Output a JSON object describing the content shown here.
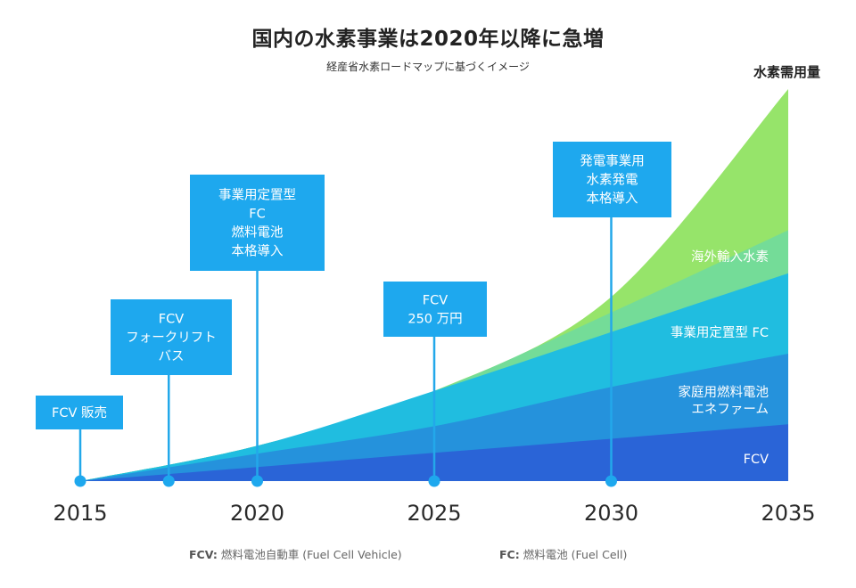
{
  "header": {
    "title": "国内の水素事業は2020年以降に急増",
    "subtitle": "経産省水素ロードマップに基づくイメージ"
  },
  "chart_data": {
    "type": "area",
    "stacked": true,
    "title": "国内の水素事業は2020年以降に急増",
    "subtitle": "経産省水素ロードマップに基づくイメージ",
    "ylabel": "水素需用量",
    "xlabel": "",
    "x": [
      2015,
      2020,
      2025,
      2030,
      2035
    ],
    "xlim": [
      2015,
      2035
    ],
    "ylim": [
      0,
      100
    ],
    "grid": false,
    "series": [
      {
        "name": "FCV",
        "color": "#2a64d7",
        "values": [
          0,
          3.6,
          7.2,
          10.8,
          14.5
        ]
      },
      {
        "name": "家庭用燃料電池 エネファーム",
        "color": "#2592dc",
        "values": [
          0,
          7,
          14,
          24,
          32.5
        ]
      },
      {
        "name": "事業用定置型 FC",
        "color": "#20bde0",
        "values": [
          0,
          9,
          23,
          38,
          53
        ]
      },
      {
        "name": "海外輸入水素",
        "color": "#74dc98",
        "values": [
          0,
          9,
          23,
          43,
          64
        ]
      },
      {
        "name": "発電事業用 水素発電",
        "color": "#96e46a",
        "values": [
          0,
          9,
          23,
          47,
          100
        ]
      }
    ],
    "series_labels": [
      {
        "lines": [
          "FCV"
        ],
        "color": "#ffffff"
      },
      {
        "lines": [
          "家庭用燃料電池",
          "エネファーム"
        ],
        "color": "#ffffff"
      },
      {
        "lines": [
          "事業用定置型 FC"
        ],
        "color": "#ffffff"
      },
      {
        "lines": [
          "海外輸入水素"
        ],
        "color": "#ffffff"
      }
    ],
    "milestones": [
      {
        "x": 2015,
        "lines": [
          "FCV 販売"
        ]
      },
      {
        "x": 2017.5,
        "lines": [
          "FCV",
          "フォークリフト",
          "バス"
        ]
      },
      {
        "x": 2020,
        "lines": [
          "事業用定置型",
          "FC",
          "燃料電池",
          "本格導入"
        ]
      },
      {
        "x": 2025,
        "lines": [
          "FCV",
          "250 万円"
        ]
      },
      {
        "x": 2030,
        "lines": [
          "発電事業用",
          "水素発電",
          "本格導入"
        ]
      }
    ],
    "tick_labels": [
      "2015",
      "2020",
      "2025",
      "2030",
      "2035"
    ],
    "colors": {
      "milestone_box": "#1ea8ee",
      "milestone_line": "#23a8ea",
      "milestone_dot": "#1ea8ee"
    }
  },
  "footnotes": {
    "fcv_key": "FCV:",
    "fcv_text": "燃料電池自動車 (Fuel Cell Vehicle)",
    "fc_key": "FC:",
    "fc_text": "燃料電池 (Fuel Cell)"
  }
}
